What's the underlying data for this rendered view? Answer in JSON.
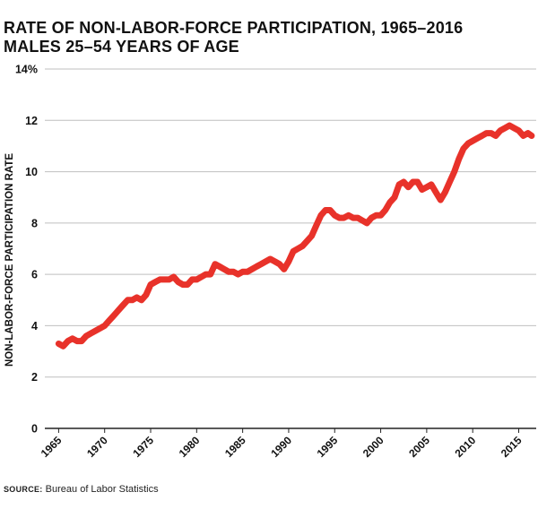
{
  "title_line1": "RATE OF NON-LABOR-FORCE PARTICIPATION, 1965–2016",
  "title_line2": "MALES 25–54 YEARS OF AGE",
  "source_label": "SOURCE:",
  "source_text": "Bureau of Labor Statistics",
  "colors": {
    "line": "#e8322a",
    "grid": "#bfbfbf",
    "axis": "#222222",
    "text": "#111111"
  },
  "chart_data": {
    "type": "line",
    "title": "RATE OF NON-LABOR-FORCE PARTICIPATION, 1965–2016",
    "subtitle": "MALES 25–54 YEARS OF AGE",
    "xlabel": "",
    "ylabel": "NON-LABOR-FORCE PARTICIPATION RATE",
    "xlim": [
      1963.5,
      2016.9
    ],
    "ylim": [
      0,
      14
    ],
    "grid": true,
    "legend": "none",
    "x_ticks": [
      1965,
      1970,
      1975,
      1980,
      1985,
      1990,
      1995,
      2000,
      2005,
      2010,
      2015
    ],
    "x_tick_labels": [
      "1965",
      "1970",
      "1975",
      "1980",
      "1985",
      "1990",
      "1995",
      "2000",
      "2005",
      "2010",
      "2015"
    ],
    "y_ticks": [
      0,
      2,
      4,
      6,
      8,
      10,
      12,
      14
    ],
    "y_tick_labels": [
      "0",
      "2",
      "4",
      "6",
      "8",
      "10",
      "12",
      "14%"
    ],
    "series": [
      {
        "x": [
          1965.0,
          1965.5,
          1966.0,
          1966.5,
          1967.0,
          1967.5,
          1968.0,
          1968.5,
          1969.0,
          1969.5,
          1970.0,
          1970.5,
          1971.0,
          1971.5,
          1972.0,
          1972.5,
          1973.0,
          1973.5,
          1974.0,
          1974.5,
          1975.0,
          1975.5,
          1976.0,
          1976.5,
          1977.0,
          1977.5,
          1978.0,
          1978.5,
          1979.0,
          1979.5,
          1980.0,
          1980.5,
          1981.0,
          1981.5,
          1982.0,
          1982.5,
          1983.0,
          1983.5,
          1984.0,
          1984.5,
          1985.0,
          1985.5,
          1986.0,
          1986.5,
          1987.0,
          1987.5,
          1988.0,
          1988.5,
          1989.0,
          1989.5,
          1990.0,
          1990.5,
          1991.0,
          1991.5,
          1992.0,
          1992.5,
          1993.0,
          1993.5,
          1994.0,
          1994.5,
          1995.0,
          1995.5,
          1996.0,
          1996.5,
          1997.0,
          1997.5,
          1998.0,
          1998.5,
          1999.0,
          1999.5,
          2000.0,
          2000.5,
          2001.0,
          2001.5,
          2002.0,
          2002.5,
          2003.0,
          2003.5,
          2004.0,
          2004.5,
          2005.0,
          2005.5,
          2006.0,
          2006.5,
          2007.0,
          2007.5,
          2008.0,
          2008.5,
          2009.0,
          2009.5,
          2010.0,
          2010.5,
          2011.0,
          2011.5,
          2012.0,
          2012.5,
          2013.0,
          2013.5,
          2014.0,
          2014.5,
          2015.0,
          2015.5,
          2016.0,
          2016.4
        ],
        "values": [
          3.3,
          3.2,
          3.4,
          3.5,
          3.4,
          3.4,
          3.6,
          3.7,
          3.8,
          3.9,
          4.0,
          4.2,
          4.4,
          4.6,
          4.8,
          5.0,
          5.0,
          5.1,
          5.0,
          5.2,
          5.6,
          5.7,
          5.8,
          5.8,
          5.8,
          5.9,
          5.7,
          5.6,
          5.6,
          5.8,
          5.8,
          5.9,
          6.0,
          6.0,
          6.4,
          6.3,
          6.2,
          6.1,
          6.1,
          6.0,
          6.1,
          6.1,
          6.2,
          6.3,
          6.4,
          6.5,
          6.6,
          6.5,
          6.4,
          6.2,
          6.5,
          6.9,
          7.0,
          7.1,
          7.3,
          7.5,
          7.9,
          8.3,
          8.5,
          8.5,
          8.3,
          8.2,
          8.2,
          8.3,
          8.2,
          8.2,
          8.1,
          8.0,
          8.2,
          8.3,
          8.3,
          8.5,
          8.8,
          9.0,
          9.5,
          9.6,
          9.4,
          9.6,
          9.6,
          9.3,
          9.4,
          9.5,
          9.2,
          8.9,
          9.2,
          9.6,
          10.0,
          10.5,
          10.9,
          11.1,
          11.2,
          11.3,
          11.4,
          11.5,
          11.5,
          11.4,
          11.6,
          11.7,
          11.8,
          11.7,
          11.6,
          11.4,
          11.5,
          11.4
        ]
      }
    ]
  }
}
